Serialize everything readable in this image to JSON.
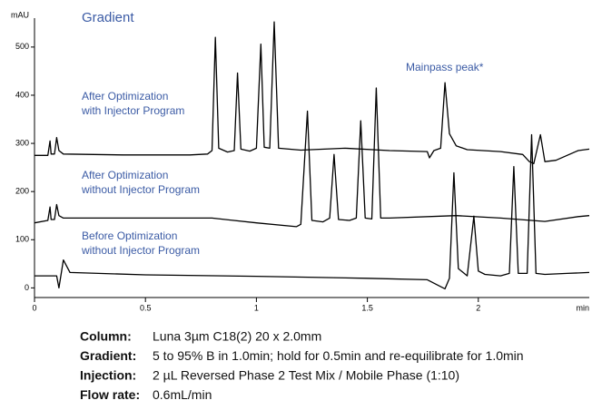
{
  "chart_data": {
    "type": "line",
    "title": "Gradient",
    "y_label": "mAU",
    "x_label": "min",
    "xlim": [
      0,
      2.5
    ],
    "ylim": [
      -20,
      560
    ],
    "xticks": [
      0,
      0.5,
      1,
      1.5,
      2
    ],
    "yticks": [
      0,
      100,
      200,
      300,
      400,
      500
    ],
    "annotations": [
      "Mainpass peak*"
    ],
    "series": [
      {
        "name": [
          "After Optimization",
          "with Injector Program"
        ],
        "color": "#000000",
        "x": [
          0,
          0.06,
          0.07,
          0.075,
          0.09,
          0.1,
          0.11,
          0.13,
          0.4,
          0.7,
          0.78,
          0.8,
          0.815,
          0.83,
          0.87,
          0.9,
          0.915,
          0.93,
          0.97,
          1.0,
          1.02,
          1.035,
          1.06,
          1.08,
          1.1,
          1.2,
          1.4,
          1.6,
          1.77,
          1.78,
          1.8,
          1.83,
          1.85,
          1.87,
          1.9,
          1.95,
          2.1,
          2.2,
          2.23,
          2.25,
          2.28,
          2.3,
          2.35,
          2.45,
          2.5
        ],
        "values": [
          275,
          275,
          305,
          278,
          278,
          312,
          285,
          278,
          276,
          276,
          278,
          285,
          520,
          290,
          282,
          285,
          446,
          288,
          284,
          290,
          506,
          292,
          290,
          552,
          290,
          286,
          290,
          285,
          283,
          270,
          285,
          290,
          426,
          320,
          295,
          287,
          283,
          277,
          262,
          258,
          318,
          262,
          265,
          285,
          288
        ]
      },
      {
        "name": [
          "After Optimization",
          "without Injector Program"
        ],
        "color": "#000000",
        "x": [
          0,
          0.06,
          0.07,
          0.075,
          0.09,
          0.1,
          0.11,
          0.13,
          0.4,
          0.8,
          1.0,
          1.18,
          1.2,
          1.23,
          1.25,
          1.3,
          1.33,
          1.35,
          1.37,
          1.42,
          1.45,
          1.47,
          1.49,
          1.52,
          1.54,
          1.56,
          1.6,
          1.9,
          2.1,
          2.3,
          2.45,
          2.5
        ],
        "values": [
          135,
          140,
          168,
          142,
          142,
          173,
          150,
          145,
          145,
          145,
          135,
          127,
          132,
          367,
          140,
          137,
          145,
          277,
          142,
          140,
          145,
          347,
          145,
          143,
          415,
          145,
          145,
          150,
          145,
          138,
          148,
          150
        ]
      },
      {
        "name": [
          "Before Optimization",
          "without Injector Program"
        ],
        "color": "#000000",
        "x": [
          0,
          0.1,
          0.11,
          0.13,
          0.16,
          0.5,
          1.0,
          1.5,
          1.77,
          1.85,
          1.87,
          1.89,
          1.91,
          1.95,
          1.98,
          2.0,
          2.03,
          2.1,
          2.14,
          2.16,
          2.18,
          2.22,
          2.24,
          2.26,
          2.3,
          2.4,
          2.5
        ],
        "values": [
          25,
          25,
          0,
          58,
          32,
          27,
          24,
          20,
          17,
          -2,
          20,
          239,
          40,
          25,
          149,
          35,
          28,
          25,
          30,
          252,
          30,
          30,
          318,
          30,
          28,
          30,
          32
        ]
      }
    ]
  },
  "conditions": [
    {
      "label": "Column:",
      "text": "Luna 3µm C18(2) 20 x 2.0mm"
    },
    {
      "label": "Gradient:",
      "text": "5 to 95% B in 1.0min; hold for 0.5min and re-equilibrate for 1.0min"
    },
    {
      "label": "Injection:",
      "text": "2 µL Reversed Phase 2 Test  Mix  /  Mobile Phase (1:10)"
    },
    {
      "label": "Flow rate:",
      "text": "0.6mL/min"
    }
  ]
}
